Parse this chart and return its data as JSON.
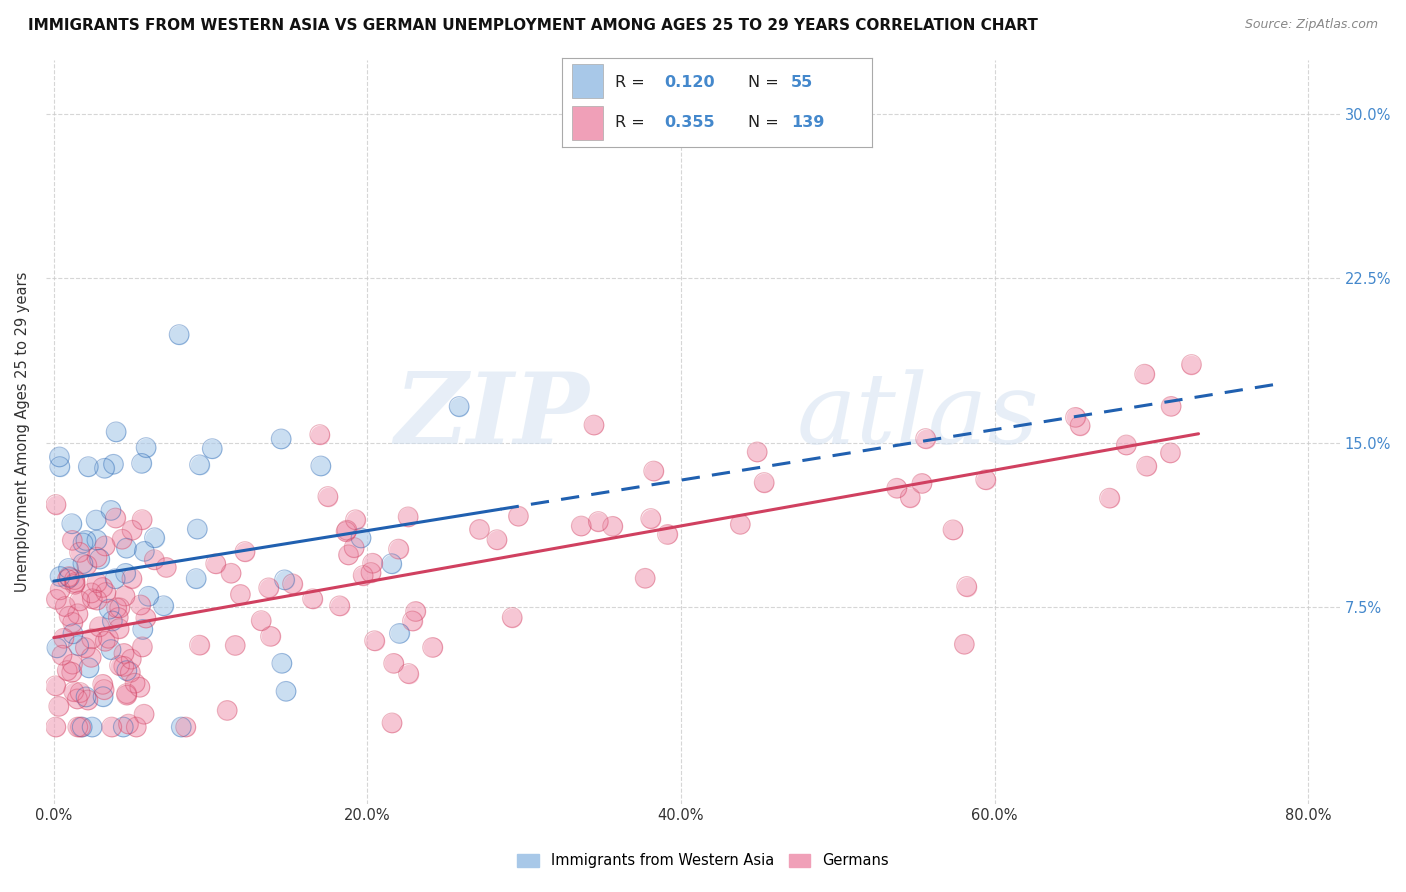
{
  "title": "IMMIGRANTS FROM WESTERN ASIA VS GERMAN UNEMPLOYMENT AMONG AGES 25 TO 29 YEARS CORRELATION CHART",
  "source": "Source: ZipAtlas.com",
  "ylabel": "Unemployment Among Ages 25 to 29 years",
  "watermark_zip": "ZIP",
  "watermark_atlas": "atlas",
  "blue_color": "#a8c8e8",
  "pink_color": "#f0a0b8",
  "blue_line_color": "#2060b0",
  "pink_line_color": "#d04060",
  "label1": "Immigrants from Western Asia",
  "label2": "Germans",
  "background_color": "#ffffff",
  "grid_color": "#cccccc",
  "tick_label_color": "#4488cc",
  "ytick_label_color": "#4488cc",
  "ylim_low": -0.015,
  "ylim_high": 0.325,
  "xlim_low": -0.005,
  "xlim_high": 0.82
}
